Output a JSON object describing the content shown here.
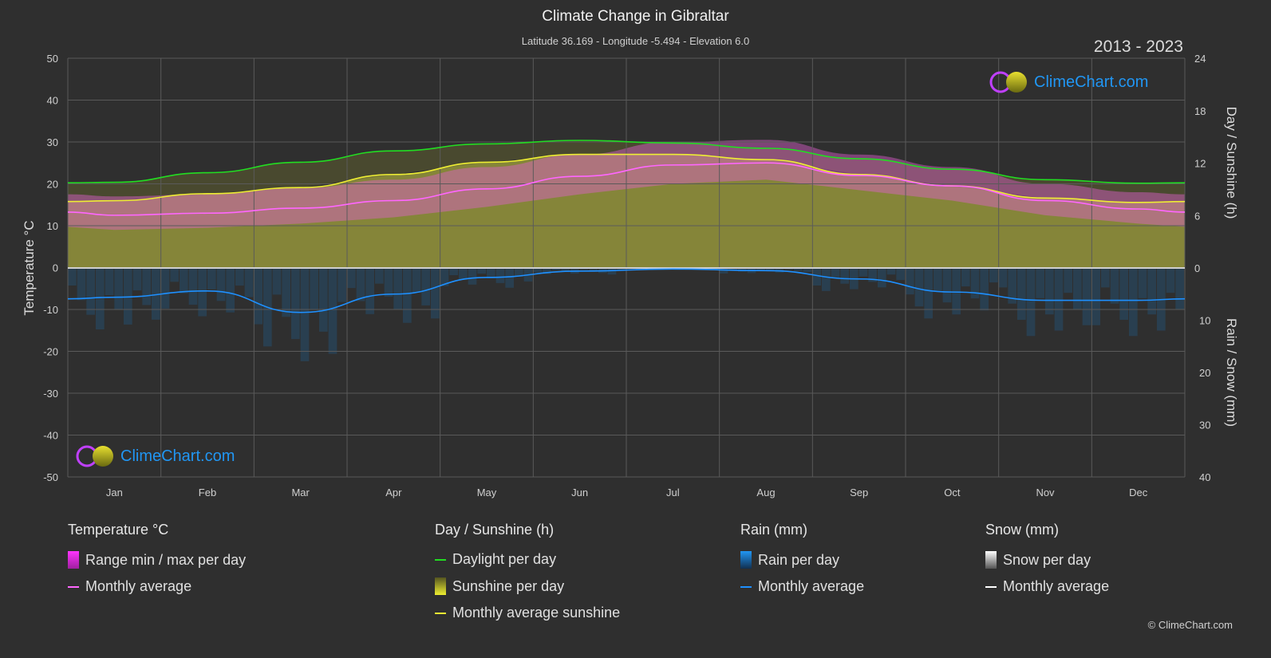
{
  "header": {
    "title": "Climate Change in Gibraltar",
    "subtitle": "Latitude 36.169 - Longitude -5.494 - Elevation 6.0",
    "years": "2013 - 2023"
  },
  "logo_text": "ClimeChart.com",
  "copyright": "© ClimeChart.com",
  "colors": {
    "background": "#2f2f2f",
    "temp_avg": "#ff66ff",
    "temp_range": "#e040e0",
    "daylight": "#22dd22",
    "sunshine": "#9a9a3a",
    "sunshine_avg": "#eeee33",
    "rain": "#1f6aa0",
    "rain_avg": "#1e90ff",
    "snow": "#ffffff"
  },
  "chart_data": {
    "type": "area",
    "title": "Climate Change in Gibraltar",
    "categories": [
      "Jan",
      "Feb",
      "Mar",
      "Apr",
      "May",
      "Jun",
      "Jul",
      "Aug",
      "Sep",
      "Oct",
      "Nov",
      "Dec"
    ],
    "left_axis": {
      "label": "Temperature °C",
      "range": [
        -50,
        50
      ],
      "ticks": [
        "50",
        "40",
        "30",
        "20",
        "10",
        "0",
        "-10",
        "-20",
        "-30",
        "-40",
        "-50"
      ]
    },
    "right_axis_top": {
      "label": "Day / Sunshine (h)",
      "range": [
        0,
        24
      ],
      "ticks": [
        "24",
        "18",
        "12",
        "6",
        "0"
      ]
    },
    "right_axis_bottom": {
      "label": "Rain / Snow (mm)",
      "range": [
        0,
        40
      ],
      "ticks": [
        "0",
        "10",
        "20",
        "30",
        "40"
      ]
    },
    "grid": true,
    "series": [
      {
        "name": "Monthly average",
        "group": "Temperature °C",
        "unit": "°C",
        "values": [
          12.5,
          13,
          14.2,
          16,
          18.8,
          21.8,
          24.5,
          25,
          22,
          19.5,
          16,
          14
        ]
      },
      {
        "name": "Range min / max per day",
        "group": "Temperature °C",
        "unit": "°C",
        "min": [
          9,
          9.5,
          10.5,
          12,
          14.5,
          17.5,
          20,
          21,
          18.5,
          16,
          12.5,
          10.5
        ],
        "max": [
          17,
          17.5,
          19,
          21,
          24,
          27,
          30,
          30.5,
          27,
          24,
          20,
          18
        ]
      },
      {
        "name": "Daylight per day",
        "group": "Day / Sunshine (h)",
        "unit": "h",
        "values": [
          9.8,
          10.9,
          12.1,
          13.4,
          14.2,
          14.6,
          14.3,
          13.7,
          12.5,
          11.3,
          10.1,
          9.7
        ]
      },
      {
        "name": "Monthly average sunshine",
        "group": "Day / Sunshine (h)",
        "unit": "h",
        "values": [
          7.7,
          8.5,
          9.2,
          10.7,
          12.1,
          13.0,
          13.0,
          12.4,
          10.7,
          9.4,
          8.0,
          7.5
        ]
      },
      {
        "name": "Monthly average",
        "group": "Rain (mm)",
        "unit": "mm",
        "values": [
          5.6,
          4.4,
          8.5,
          5.0,
          1.8,
          0.6,
          0.2,
          0.5,
          2.1,
          4.6,
          6.2,
          6.2
        ]
      },
      {
        "name": "Monthly average",
        "group": "Snow (mm)",
        "unit": "mm",
        "values": [
          0,
          0,
          0,
          0,
          0,
          0,
          0,
          0,
          0,
          0,
          0,
          0
        ]
      }
    ]
  },
  "legend": {
    "temp": {
      "title": "Temperature °C",
      "items": [
        "Range min / max per day",
        "Monthly average"
      ]
    },
    "sun": {
      "title": "Day / Sunshine (h)",
      "items": [
        "Daylight per day",
        "Sunshine per day",
        "Monthly average sunshine"
      ]
    },
    "rain": {
      "title": "Rain (mm)",
      "items": [
        "Rain per day",
        "Monthly average"
      ]
    },
    "snow": {
      "title": "Snow (mm)",
      "items": [
        "Snow per day",
        "Monthly average"
      ]
    }
  }
}
